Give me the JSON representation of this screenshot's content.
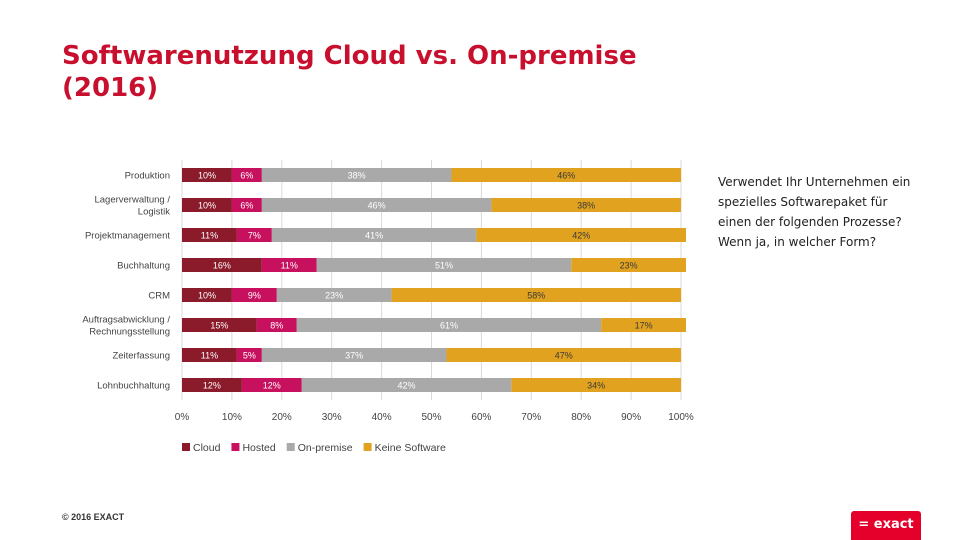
{
  "title": "Softwarenutzung Cloud vs. On-premise (2016)",
  "side_note": "Verwendet Ihr Unternehmen ein spezielles Softwarepaket für einen der folgenden Prozesse? Wenn ja, in welcher Form?",
  "copyright": "© 2016 EXACT",
  "logo_text": "= exact",
  "chart_data": {
    "type": "bar",
    "orientation": "horizontal",
    "stacked": "percent",
    "categories": [
      [
        "Produktion"
      ],
      [
        "Lagerverwaltung /",
        "Logistik"
      ],
      [
        "Projektmanagement"
      ],
      [
        "Buchhaltung"
      ],
      [
        "CRM"
      ],
      [
        "Auftragsabwicklung /",
        "Rechnungsstellung"
      ],
      [
        "Zeiterfassung"
      ],
      [
        "Lohnbuchhaltung"
      ]
    ],
    "series": [
      {
        "name": "Cloud",
        "color": "#8b1a2b",
        "label_color": "#ffffff",
        "values": [
          10,
          10,
          11,
          16,
          10,
          15,
          11,
          12
        ]
      },
      {
        "name": "Hosted",
        "color": "#c7115f",
        "label_color": "#ffffff",
        "values": [
          6,
          6,
          7,
          11,
          9,
          8,
          5,
          12
        ]
      },
      {
        "name": "On-premise",
        "color": "#a9a9a9",
        "label_color": "#ffffff",
        "values": [
          38,
          46,
          41,
          51,
          23,
          61,
          37,
          42
        ]
      },
      {
        "name": "Keine Software",
        "color": "#e0a21f",
        "label_color": "#3a3a3a",
        "values": [
          46,
          38,
          42,
          23,
          58,
          17,
          47,
          34
        ]
      }
    ],
    "xlim": [
      0,
      100
    ],
    "xticks": [
      "0%",
      "10%",
      "20%",
      "30%",
      "40%",
      "50%",
      "60%",
      "70%",
      "80%",
      "90%",
      "100%"
    ],
    "value_suffix": "%",
    "grid": true,
    "legend_position": "bottom"
  }
}
